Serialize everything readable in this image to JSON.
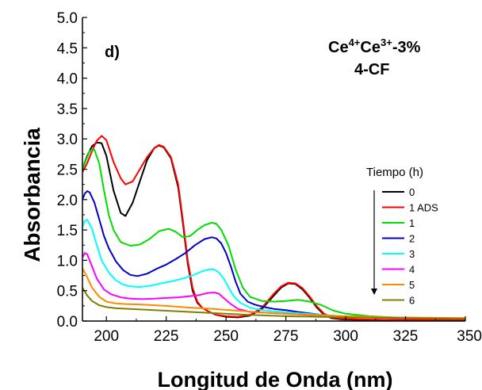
{
  "chart_data": {
    "type": "line",
    "xlabel": "Longitud de Onda (nm)",
    "ylabel": "Absorbancia",
    "xlim": [
      190,
      350
    ],
    "ylim": [
      0,
      5
    ],
    "xticks": [
      200,
      225,
      250,
      275,
      300,
      325,
      350
    ],
    "yticks": [
      "0.0",
      "0.5",
      "1.0",
      "1.5",
      "2.0",
      "2.5",
      "3.0",
      "3.5",
      "4.0",
      "4.5",
      "5.0"
    ],
    "panel_label": "d)",
    "sample": {
      "line1_base": "Ce",
      "line1_sup1": "4+",
      "line1_mid": "Ce",
      "line1_sup2": "3+",
      "line1_tail": "-3%",
      "line2": "4-CF"
    },
    "legend_title": "Tiempo (h)",
    "legend_placement": "right",
    "series": [
      {
        "name": "0",
        "color": "#000000",
        "x": [
          190,
          192,
          194,
          196,
          198,
          200,
          203,
          206,
          208,
          211,
          214,
          217,
          220,
          222,
          224,
          227,
          230,
          232,
          234,
          236,
          238,
          240,
          243,
          246,
          250,
          255,
          260,
          265,
          270,
          273,
          276,
          279,
          282,
          285,
          288,
          291,
          294,
          298,
          305,
          320,
          350
        ],
        "y": [
          2.5,
          2.72,
          2.88,
          2.94,
          2.93,
          2.72,
          2.15,
          1.78,
          1.73,
          1.95,
          2.3,
          2.65,
          2.85,
          2.89,
          2.86,
          2.68,
          2.2,
          1.6,
          0.95,
          0.5,
          0.3,
          0.22,
          0.15,
          0.1,
          0.07,
          0.06,
          0.09,
          0.2,
          0.42,
          0.55,
          0.62,
          0.61,
          0.52,
          0.38,
          0.22,
          0.1,
          0.05,
          0.03,
          0.02,
          0.02,
          0.02
        ]
      },
      {
        "name": "1 ADS",
        "color": "#ff0000",
        "x": [
          190,
          192,
          194,
          196,
          198,
          200,
          203,
          206,
          208,
          211,
          214,
          217,
          220,
          222,
          224,
          227,
          230,
          232,
          234,
          236,
          238,
          240,
          243,
          246,
          250,
          255,
          260,
          265,
          270,
          273,
          276,
          279,
          282,
          285,
          288,
          291,
          294,
          298,
          305,
          320,
          350
        ],
        "y": [
          2.45,
          2.6,
          2.8,
          2.97,
          3.05,
          2.98,
          2.62,
          2.35,
          2.25,
          2.3,
          2.5,
          2.7,
          2.85,
          2.9,
          2.87,
          2.7,
          2.25,
          1.65,
          1.0,
          0.55,
          0.32,
          0.22,
          0.15,
          0.1,
          0.08,
          0.07,
          0.1,
          0.22,
          0.45,
          0.57,
          0.63,
          0.62,
          0.54,
          0.4,
          0.24,
          0.12,
          0.06,
          0.04,
          0.03,
          0.02,
          0.02
        ]
      },
      {
        "name": "1",
        "color": "#00dd00",
        "x": [
          190,
          192,
          193,
          195,
          197,
          199,
          201,
          203,
          206,
          210,
          214,
          218,
          222,
          226,
          229,
          232,
          235,
          238,
          241,
          244,
          246,
          248,
          251,
          254,
          257,
          260,
          265,
          270,
          275,
          280,
          285,
          290,
          295,
          300,
          310,
          320,
          335,
          350
        ],
        "y": [
          2.5,
          2.7,
          2.8,
          2.82,
          2.6,
          2.15,
          1.75,
          1.5,
          1.3,
          1.24,
          1.26,
          1.35,
          1.48,
          1.52,
          1.47,
          1.38,
          1.4,
          1.5,
          1.58,
          1.62,
          1.6,
          1.5,
          1.25,
          0.85,
          0.55,
          0.4,
          0.33,
          0.32,
          0.33,
          0.35,
          0.32,
          0.26,
          0.17,
          0.12,
          0.08,
          0.06,
          0.05,
          0.04
        ]
      },
      {
        "name": "2",
        "color": "#0000cc",
        "x": [
          190,
          191,
          192,
          193,
          195,
          197,
          199,
          201,
          204,
          207,
          210,
          213,
          217,
          221,
          225,
          229,
          233,
          237,
          241,
          244,
          246,
          248,
          250,
          252,
          254,
          256,
          259,
          262,
          266,
          270,
          275,
          280,
          290,
          300,
          320,
          350
        ],
        "y": [
          2.0,
          2.1,
          2.14,
          2.12,
          1.95,
          1.68,
          1.4,
          1.2,
          0.98,
          0.84,
          0.76,
          0.74,
          0.78,
          0.86,
          0.93,
          1.02,
          1.12,
          1.25,
          1.35,
          1.38,
          1.36,
          1.28,
          1.12,
          0.9,
          0.65,
          0.45,
          0.32,
          0.27,
          0.23,
          0.2,
          0.18,
          0.15,
          0.1,
          0.07,
          0.05,
          0.04
        ]
      },
      {
        "name": "3",
        "color": "#00ffff",
        "x": [
          190,
          191,
          192,
          194,
          196,
          198,
          201,
          204,
          207,
          210,
          214,
          218,
          223,
          228,
          232,
          236,
          240,
          243,
          245,
          247,
          249,
          251,
          253,
          256,
          260,
          265,
          270,
          280,
          290,
          300,
          320,
          350
        ],
        "y": [
          1.55,
          1.65,
          1.67,
          1.52,
          1.25,
          1.0,
          0.8,
          0.67,
          0.6,
          0.57,
          0.56,
          0.58,
          0.62,
          0.66,
          0.7,
          0.75,
          0.82,
          0.85,
          0.85,
          0.8,
          0.7,
          0.56,
          0.42,
          0.3,
          0.22,
          0.18,
          0.16,
          0.13,
          0.1,
          0.07,
          0.05,
          0.04
        ]
      },
      {
        "name": "4",
        "color": "#ff00ff",
        "x": [
          190,
          191,
          192,
          194,
          196,
          199,
          202,
          206,
          210,
          215,
          220,
          225,
          230,
          235,
          239,
          242,
          245,
          247,
          249,
          252,
          255,
          260,
          270,
          280,
          290,
          300,
          320,
          350
        ],
        "y": [
          1.05,
          1.12,
          1.1,
          0.9,
          0.7,
          0.52,
          0.44,
          0.39,
          0.37,
          0.36,
          0.37,
          0.38,
          0.39,
          0.41,
          0.43,
          0.46,
          0.47,
          0.45,
          0.38,
          0.28,
          0.2,
          0.15,
          0.13,
          0.11,
          0.09,
          0.07,
          0.05,
          0.04
        ]
      },
      {
        "name": "5",
        "color": "#ff8800",
        "x": [
          190,
          192,
          194,
          197,
          200,
          204,
          208,
          215,
          225,
          235,
          245,
          255,
          265,
          280,
          300,
          320,
          350
        ],
        "y": [
          0.87,
          0.72,
          0.55,
          0.4,
          0.32,
          0.29,
          0.28,
          0.27,
          0.25,
          0.22,
          0.2,
          0.17,
          0.14,
          0.11,
          0.08,
          0.06,
          0.05
        ]
      },
      {
        "name": "6",
        "color": "#808000",
        "x": [
          190,
          192,
          194,
          197,
          200,
          204,
          210,
          220,
          230,
          240,
          250,
          260,
          275,
          300,
          325,
          350
        ],
        "y": [
          0.55,
          0.42,
          0.33,
          0.26,
          0.23,
          0.21,
          0.2,
          0.18,
          0.16,
          0.14,
          0.12,
          0.1,
          0.08,
          0.06,
          0.05,
          0.04
        ]
      }
    ]
  }
}
